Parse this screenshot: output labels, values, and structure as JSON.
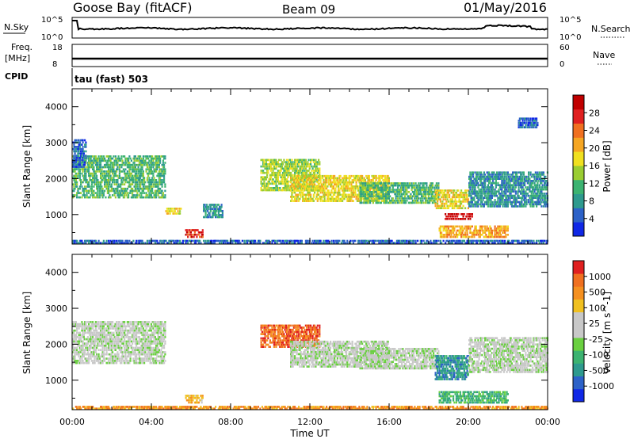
{
  "header": {
    "station": "Goose Bay (fitACF)",
    "beam": "Beam 09",
    "date": "01/May/2016"
  },
  "strips": {
    "nsky_label": "N.Sky",
    "nsky_ticks": [
      "10^5",
      "10^0"
    ],
    "nsearch_label": "N.Search",
    "nsearch_ticks": [
      "10^5",
      "10^0"
    ],
    "freq_label": "Freq.",
    "freq_unit": "[MHz]",
    "freq_ticks": [
      "18",
      "8"
    ],
    "nave_label": "Nave",
    "nave_ticks": [
      "60",
      "0"
    ],
    "cpid_label": "CPID",
    "cpid_value": "tau (fast) 503"
  },
  "chart_data": [
    {
      "type": "heatmap",
      "name": "power",
      "ylabel": "Slant Range [km]",
      "yticks": [
        1000,
        2000,
        3000,
        4000
      ],
      "ylim": [
        180,
        4500
      ],
      "x_range": [
        "00:00",
        "24:00"
      ],
      "colorbar": {
        "label": "Power [dB]",
        "ticks": [
          "4",
          "8",
          "12",
          "16",
          "20",
          "24",
          "28"
        ],
        "colors": [
          "#1028e6",
          "#2d62c8",
          "#2e9a8e",
          "#3cb371",
          "#9acd32",
          "#f0e020",
          "#f5a623",
          "#f07020",
          "#e02020",
          "#c00000"
        ]
      },
      "regions": [
        {
          "t0": 0.0,
          "t1": 4.7,
          "r0": 1450,
          "r1": 2650,
          "level": 3
        },
        {
          "t0": 0.0,
          "t1": 0.7,
          "r0": 2300,
          "r1": 3100,
          "level": 1
        },
        {
          "t0": 4.7,
          "t1": 5.5,
          "r0": 1000,
          "r1": 1200,
          "level": 5
        },
        {
          "t0": 5.7,
          "t1": 6.6,
          "r0": 350,
          "r1": 600,
          "level": 8
        },
        {
          "t0": 6.6,
          "t1": 7.6,
          "r0": 900,
          "r1": 1300,
          "level": 2
        },
        {
          "t0": 9.5,
          "t1": 12.5,
          "r0": 1650,
          "r1": 2550,
          "level": 4
        },
        {
          "t0": 11.0,
          "t1": 16.0,
          "r0": 1350,
          "r1": 2100,
          "level": 5
        },
        {
          "t0": 14.5,
          "t1": 18.5,
          "r0": 1300,
          "r1": 1900,
          "level": 3
        },
        {
          "t0": 18.3,
          "t1": 20.0,
          "r0": 1150,
          "r1": 1700,
          "level": 5
        },
        {
          "t0": 18.8,
          "t1": 20.2,
          "r0": 850,
          "r1": 1050,
          "level": 9
        },
        {
          "t0": 18.5,
          "t1": 22.0,
          "r0": 350,
          "r1": 700,
          "level": 6
        },
        {
          "t0": 20.0,
          "t1": 24.0,
          "r0": 1200,
          "r1": 2200,
          "level": 2
        },
        {
          "t0": 22.5,
          "t1": 23.5,
          "r0": 3400,
          "r1": 3700,
          "level": 1
        },
        {
          "t0": 0.0,
          "t1": 24.0,
          "r0": 180,
          "r1": 300,
          "level": 1
        }
      ]
    },
    {
      "type": "heatmap",
      "name": "velocity",
      "ylabel": "Slant Range [km]",
      "xlabel": "Time UT",
      "xticks": [
        "00:00",
        "04:00",
        "08:00",
        "12:00",
        "16:00",
        "20:00",
        "00:00"
      ],
      "yticks": [
        1000,
        2000,
        3000,
        4000
      ],
      "ylim": [
        180,
        4500
      ],
      "colorbar": {
        "label": "Velocity [m s^-1]",
        "ticks": [
          "1000",
          "500",
          "100",
          "25",
          "-25",
          "-100",
          "-500",
          "-1000"
        ],
        "colors": [
          "#1028e6",
          "#2d62c8",
          "#2e9a8e",
          "#3cb371",
          "#6ad040",
          "#c8c8c8",
          "#c8c8c8",
          "#f0c020",
          "#f59020",
          "#f07020",
          "#e02020"
        ]
      },
      "regions": [
        {
          "t0": 0.0,
          "t1": 4.7,
          "r0": 1450,
          "r1": 2650,
          "level": 5
        },
        {
          "t0": 5.7,
          "t1": 6.6,
          "r0": 350,
          "r1": 600,
          "level": 7
        },
        {
          "t0": 9.5,
          "t1": 12.5,
          "r0": 1900,
          "r1": 2550,
          "level": 9
        },
        {
          "t0": 11.0,
          "t1": 16.0,
          "r0": 1350,
          "r1": 2100,
          "level": 5
        },
        {
          "t0": 14.5,
          "t1": 18.5,
          "r0": 1300,
          "r1": 1900,
          "level": 5
        },
        {
          "t0": 18.3,
          "t1": 20.0,
          "r0": 1000,
          "r1": 1700,
          "level": 2
        },
        {
          "t0": 18.5,
          "t1": 22.0,
          "r0": 350,
          "r1": 700,
          "level": 3
        },
        {
          "t0": 20.0,
          "t1": 24.0,
          "r0": 1200,
          "r1": 2200,
          "level": 5
        },
        {
          "t0": 0.0,
          "t1": 24.0,
          "r0": 180,
          "r1": 280,
          "level": 8
        }
      ]
    }
  ]
}
